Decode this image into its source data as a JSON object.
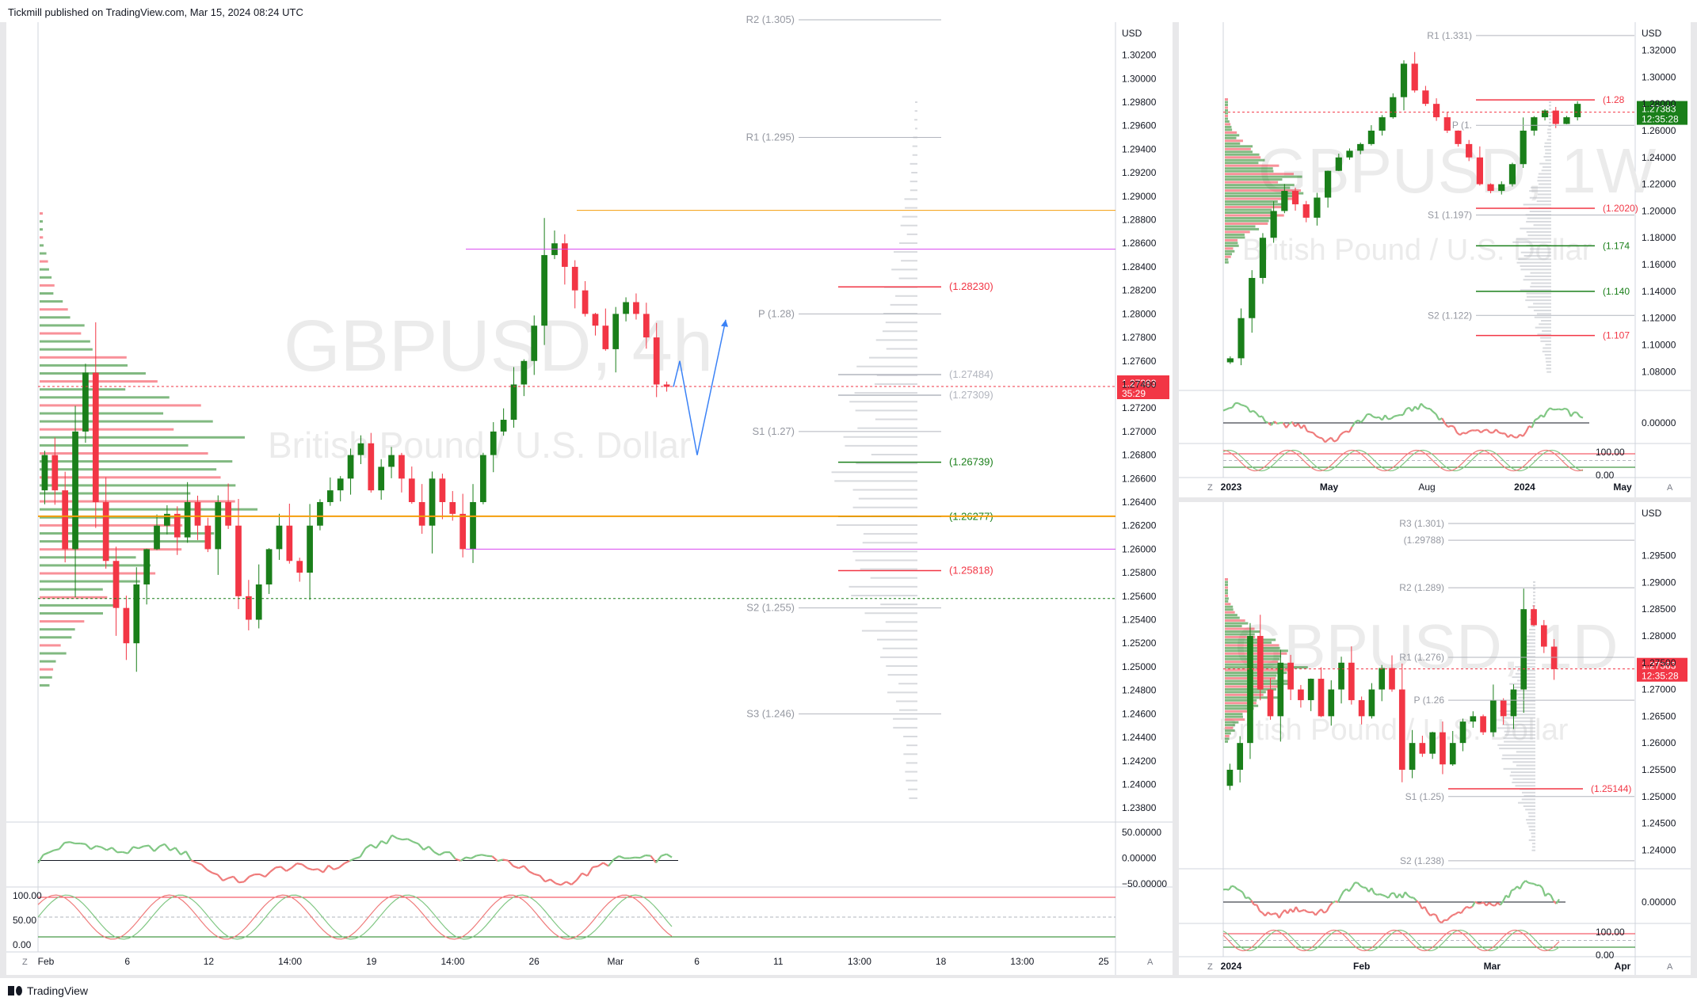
{
  "header": {
    "published": "Tickmill published on TradingView.com, Mar 15, 2024 08:24 UTC"
  },
  "footer": {
    "brand": "TradingView"
  },
  "colors": {
    "bull": "#1a7f1a",
    "bear": "#f23645",
    "pivot": "#b2b5be",
    "orange": "#f59e0b",
    "magenta": "#d946ef",
    "forecast": "#3b82f6",
    "osc_green": "#81c784",
    "osc_red": "#ef7b7b"
  },
  "chart_data": [
    {
      "type": "line",
      "symbol_watermark": "GBPUSD, 4h",
      "description_watermark": "British Pound / U.S. Dollar",
      "currency": "USD",
      "last_price": "1.27383",
      "countdown": "35:29",
      "y_ticks": [
        "1.30200",
        "1.30000",
        "1.29800",
        "1.29600",
        "1.29400",
        "1.29200",
        "1.29000",
        "1.28800",
        "1.28600",
        "1.28400",
        "1.28200",
        "1.28000",
        "1.27800",
        "1.27600",
        "1.27400",
        "1.27200",
        "1.27000",
        "1.26800",
        "1.26600",
        "1.26400",
        "1.26200",
        "1.26000",
        "1.25800",
        "1.25600",
        "1.25400",
        "1.25200",
        "1.25000",
        "1.24800",
        "1.24600",
        "1.24400",
        "1.24200",
        "1.24000",
        "1.23800"
      ],
      "ylim": [
        1.2368,
        1.3048
      ],
      "x_ticks": [
        "Feb",
        "6",
        "12",
        "14:00",
        "19",
        "14:00",
        "26",
        "Mar",
        "6",
        "11",
        "13:00",
        "18",
        "13:00",
        "25"
      ],
      "close_series": [
        1.268,
        1.265,
        1.26,
        1.27,
        1.275,
        1.264,
        1.259,
        1.255,
        1.252,
        1.257,
        1.26,
        1.262,
        1.263,
        1.261,
        1.264,
        1.262,
        1.26,
        1.264,
        1.262,
        1.256,
        1.254,
        1.257,
        1.26,
        1.262,
        1.259,
        1.258,
        1.262,
        1.264,
        1.265,
        1.266,
        1.268,
        1.269,
        1.265,
        1.267,
        1.268,
        1.266,
        1.264,
        1.262,
        1.266,
        1.264,
        1.263,
        1.26,
        1.264,
        1.268,
        1.27,
        1.271,
        1.274,
        1.276,
        1.279,
        1.285,
        1.286,
        1.284,
        1.282,
        1.28,
        1.279,
        1.277,
        1.28,
        1.281,
        1.28,
        1.278,
        1.274,
        1.2738
      ],
      "pivot_levels": [
        {
          "label": "R2 (1.305)",
          "value": 1.305
        },
        {
          "label": "R1 (1.295)",
          "value": 1.295
        },
        {
          "label": "P (1.28)",
          "value": 1.28
        },
        {
          "label": "S1 (1.27)",
          "value": 1.27
        },
        {
          "label": "S2 (1.255)",
          "value": 1.255
        },
        {
          "label": "S3 (1.246)",
          "value": 1.246
        }
      ],
      "levels": [
        {
          "label": "(1.28230)",
          "value": 1.2823,
          "kind": "bear"
        },
        {
          "label": "(1.27484)",
          "value": 1.27484,
          "kind": "grey"
        },
        {
          "label": "(1.27309)",
          "value": 1.27309,
          "kind": "grey"
        },
        {
          "label": "(1.26739)",
          "value": 1.26739,
          "kind": "bull"
        },
        {
          "label": "(1.26277)",
          "value": 1.26277,
          "kind": "bull"
        },
        {
          "label": "(1.25818)",
          "value": 1.25818,
          "kind": "bear"
        }
      ],
      "forecast_path": [
        1.2738,
        1.276,
        1.268,
        1.2795
      ],
      "osc1_ticks": [
        "50.00000",
        "0.00000",
        "−50.00000"
      ],
      "osc2_ticks": [
        "100.00",
        "50.00",
        "0.00"
      ]
    },
    {
      "type": "line",
      "symbol_watermark": "GBPUSD, 1W",
      "description_watermark": "British Pound / U.S. Dollar",
      "currency": "USD",
      "last_price": "1.27383",
      "countdown": "12:35:28",
      "y_ticks": [
        "1.32000",
        "1.30000",
        "1.28000",
        "1.26000",
        "1.24000",
        "1.22000",
        "1.20000",
        "1.18000",
        "1.16000",
        "1.14000",
        "1.12000",
        "1.10000",
        "1.08000"
      ],
      "ylim": [
        1.066,
        1.341
      ],
      "x_ticks": [
        "2023",
        "May",
        "Aug",
        "2024",
        "May"
      ],
      "close_series": [
        1.09,
        1.12,
        1.15,
        1.18,
        1.2,
        1.215,
        1.205,
        1.195,
        1.21,
        1.23,
        1.24,
        1.245,
        1.25,
        1.26,
        1.27,
        1.285,
        1.31,
        1.29,
        1.28,
        1.27,
        1.26,
        1.25,
        1.24,
        1.22,
        1.215,
        1.22,
        1.235,
        1.26,
        1.27,
        1.275,
        1.265,
        1.27,
        1.28
      ],
      "pivot_levels": [
        {
          "label": "R1 (1.331)",
          "value": 1.331
        },
        {
          "label": "P (1.",
          "value": 1.264
        },
        {
          "label": "S1 (1.197)",
          "value": 1.197
        },
        {
          "label": "S2 (1.122)",
          "value": 1.122
        }
      ],
      "levels": [
        {
          "label": "(1.28",
          "value": 1.283,
          "kind": "bear"
        },
        {
          "label": "(1.2020)",
          "value": 1.202,
          "kind": "bear"
        },
        {
          "label": "(1.174",
          "value": 1.174,
          "kind": "bull"
        },
        {
          "label": "(1.140",
          "value": 1.14,
          "kind": "bull"
        },
        {
          "label": "(1.107",
          "value": 1.107,
          "kind": "bear"
        }
      ],
      "osc1_ticks": [
        "0.00000"
      ],
      "osc2_ticks": [
        "100.00",
        "0.00"
      ]
    },
    {
      "type": "line",
      "symbol_watermark": "GBPUSD, 1D",
      "description_watermark": "British Pound / U.S. Dollar",
      "currency": "USD",
      "last_price": "1.27383",
      "countdown": "12:35:28",
      "y_ticks": [
        "1.29500",
        "1.29000",
        "1.28500",
        "1.28000",
        "1.27500",
        "1.27000",
        "1.26500",
        "1.26000",
        "1.25500",
        "1.25000",
        "1.24500",
        "1.24000"
      ],
      "ylim": [
        1.2365,
        1.305
      ],
      "x_ticks": [
        "2024",
        "Feb",
        "Mar",
        "Apr"
      ],
      "close_series": [
        1.255,
        1.26,
        1.28,
        1.27,
        1.265,
        1.275,
        1.27,
        1.268,
        1.272,
        1.265,
        1.27,
        1.275,
        1.268,
        1.265,
        1.27,
        1.274,
        1.27,
        1.255,
        1.26,
        1.258,
        1.262,
        1.256,
        1.26,
        1.264,
        1.265,
        1.262,
        1.268,
        1.265,
        1.27,
        1.285,
        1.282,
        1.278,
        1.2738
      ],
      "pivot_levels": [
        {
          "label": "R3 (1.301)",
          "value": 1.301
        },
        {
          "label": "(1.29788)",
          "value": 1.29788
        },
        {
          "label": "R2 (1.289)",
          "value": 1.289
        },
        {
          "label": "R1 (1.276)",
          "value": 1.276
        },
        {
          "label": "P (1.26",
          "value": 1.268
        },
        {
          "label": "S1 (1.25)",
          "value": 1.25
        },
        {
          "label": "S2 (1.238)",
          "value": 1.238
        }
      ],
      "levels": [
        {
          "label": "(1.25144)",
          "value": 1.25144,
          "kind": "bear"
        }
      ],
      "osc1_ticks": [
        "0.00000"
      ],
      "osc2_ticks": [
        "100.00",
        "0.00"
      ]
    }
  ]
}
